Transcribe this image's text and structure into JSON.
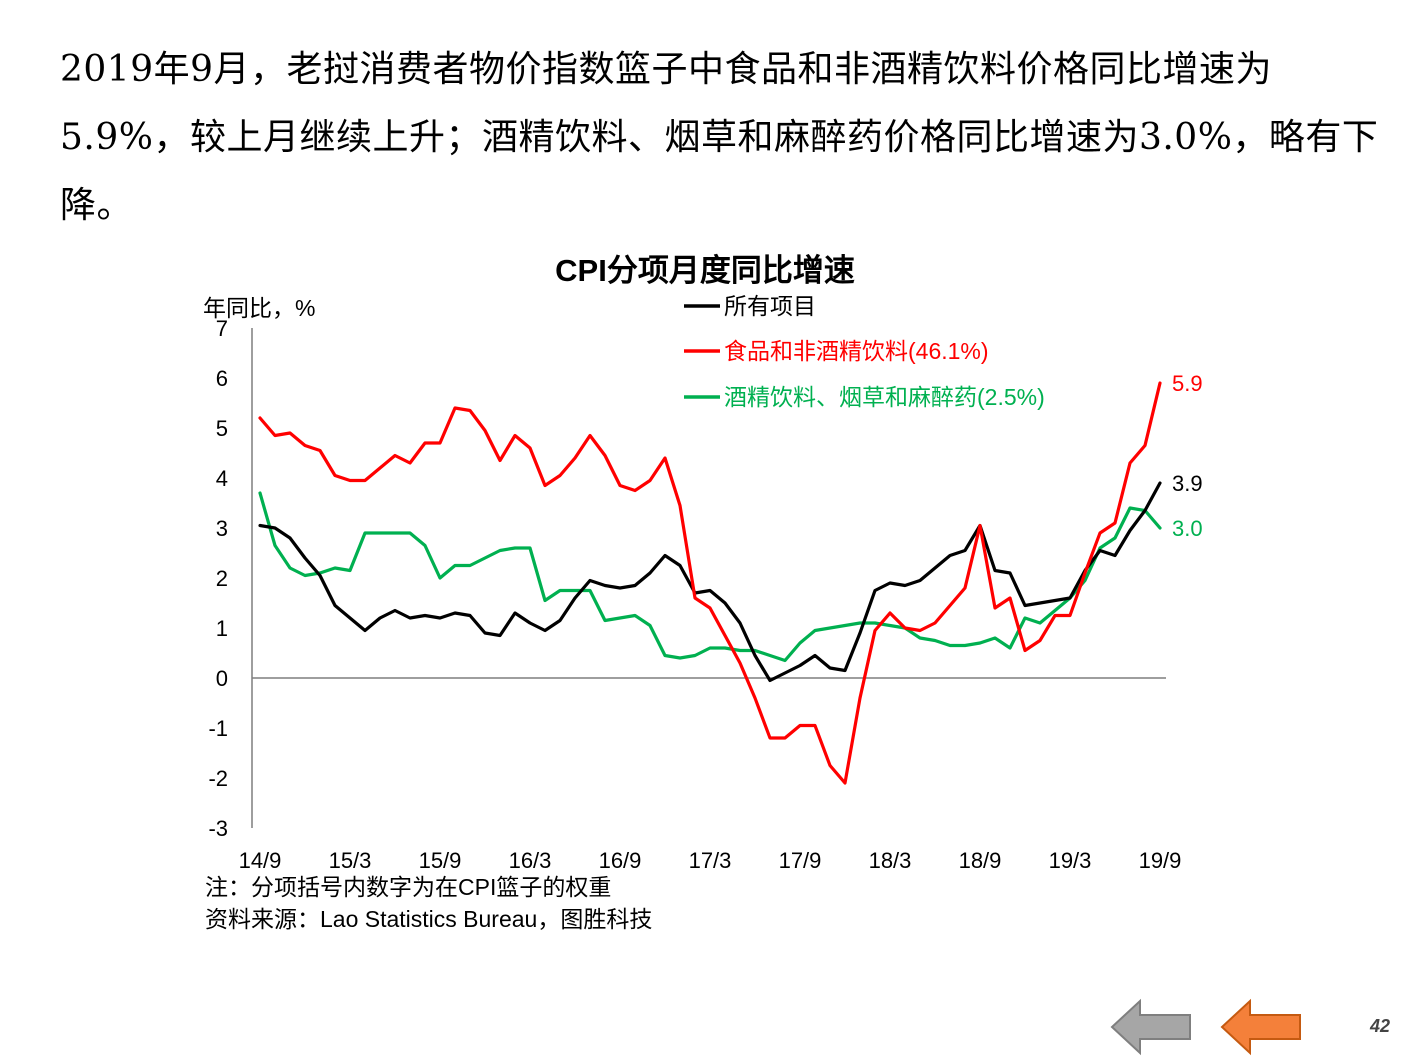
{
  "headline": "2019年9月，老挝消费者物价指数篮子中食品和非酒精饮料价格同比增速为5.9%，较上月继续上升；酒精饮料、烟草和麻醉药价格同比增速为3.0%，略有下降。",
  "chart_data": {
    "type": "line",
    "title": "CPI分项月度同比增速",
    "ylabel": "年同比，%",
    "xlabel": "",
    "ylim": [
      -3,
      7
    ],
    "yticks": [
      7,
      6,
      5,
      4,
      3,
      2,
      1,
      0,
      -1,
      -2,
      -3
    ],
    "x_tick_labels": [
      "14/9",
      "15/3",
      "15/9",
      "16/3",
      "16/9",
      "17/3",
      "17/9",
      "18/3",
      "18/9",
      "19/3",
      "19/9"
    ],
    "months": 61,
    "legend_position": "top-right",
    "series": [
      {
        "name": "所有项目",
        "color": "#000000",
        "end_label": "3.9",
        "values": [
          3.05,
          3.0,
          2.8,
          2.4,
          2.05,
          1.45,
          1.2,
          0.95,
          1.2,
          1.35,
          1.2,
          1.25,
          1.2,
          1.3,
          1.25,
          0.9,
          0.85,
          1.3,
          1.1,
          0.95,
          1.15,
          1.6,
          1.95,
          1.85,
          1.8,
          1.85,
          2.1,
          2.45,
          2.25,
          1.7,
          1.75,
          1.5,
          1.1,
          0.45,
          -0.05,
          0.1,
          0.25,
          0.45,
          0.2,
          0.15,
          0.9,
          1.75,
          1.9,
          1.85,
          1.95,
          2.2,
          2.45,
          2.55,
          3.05,
          2.15,
          2.1,
          1.45,
          1.5,
          1.55,
          1.6,
          2.15,
          2.55,
          2.45,
          2.95,
          3.35,
          3.9
        ]
      },
      {
        "name": "食品和非酒精饮料(46.1%)",
        "color": "#ff0000",
        "end_label": "5.9",
        "values": [
          5.2,
          4.85,
          4.9,
          4.65,
          4.55,
          4.05,
          3.95,
          3.95,
          4.2,
          4.45,
          4.3,
          4.7,
          4.7,
          5.4,
          5.35,
          4.95,
          4.35,
          4.85,
          4.6,
          3.85,
          4.05,
          4.4,
          4.85,
          4.45,
          3.85,
          3.75,
          3.95,
          4.4,
          3.45,
          1.6,
          1.4,
          0.85,
          0.3,
          -0.4,
          -1.2,
          -1.2,
          -0.95,
          -0.95,
          -1.75,
          -2.1,
          -0.4,
          0.95,
          1.3,
          1.0,
          0.95,
          1.1,
          1.45,
          1.8,
          3.05,
          1.4,
          1.6,
          0.55,
          0.75,
          1.25,
          1.25,
          2.1,
          2.9,
          3.1,
          4.3,
          4.65,
          5.9
        ]
      },
      {
        "name": "酒精饮料、烟草和麻醉药(2.5%)",
        "color": "#00b050",
        "end_label": "3.0",
        "values": [
          3.7,
          2.65,
          2.2,
          2.05,
          2.1,
          2.2,
          2.15,
          2.9,
          2.9,
          2.9,
          2.9,
          2.65,
          2.0,
          2.25,
          2.25,
          2.4,
          2.55,
          2.6,
          2.6,
          1.55,
          1.75,
          1.75,
          1.75,
          1.15,
          1.2,
          1.25,
          1.05,
          0.45,
          0.4,
          0.45,
          0.6,
          0.6,
          0.55,
          0.55,
          0.45,
          0.35,
          0.7,
          0.95,
          1.0,
          1.05,
          1.1,
          1.1,
          1.05,
          1.0,
          0.8,
          0.75,
          0.65,
          0.65,
          0.7,
          0.8,
          0.6,
          1.2,
          1.1,
          1.35,
          1.6,
          1.95,
          2.6,
          2.8,
          3.4,
          3.35,
          3.0
        ]
      }
    ]
  },
  "notes": {
    "note": "注：分项括号内数字为在CPI篮子的权重",
    "source": "资料来源：Lao Statistics Bureau，图胜科技"
  },
  "navigation": {
    "page_number": "42"
  },
  "colors": {
    "prev_button": "#a6a6a6",
    "next_button": "#f4803a"
  }
}
